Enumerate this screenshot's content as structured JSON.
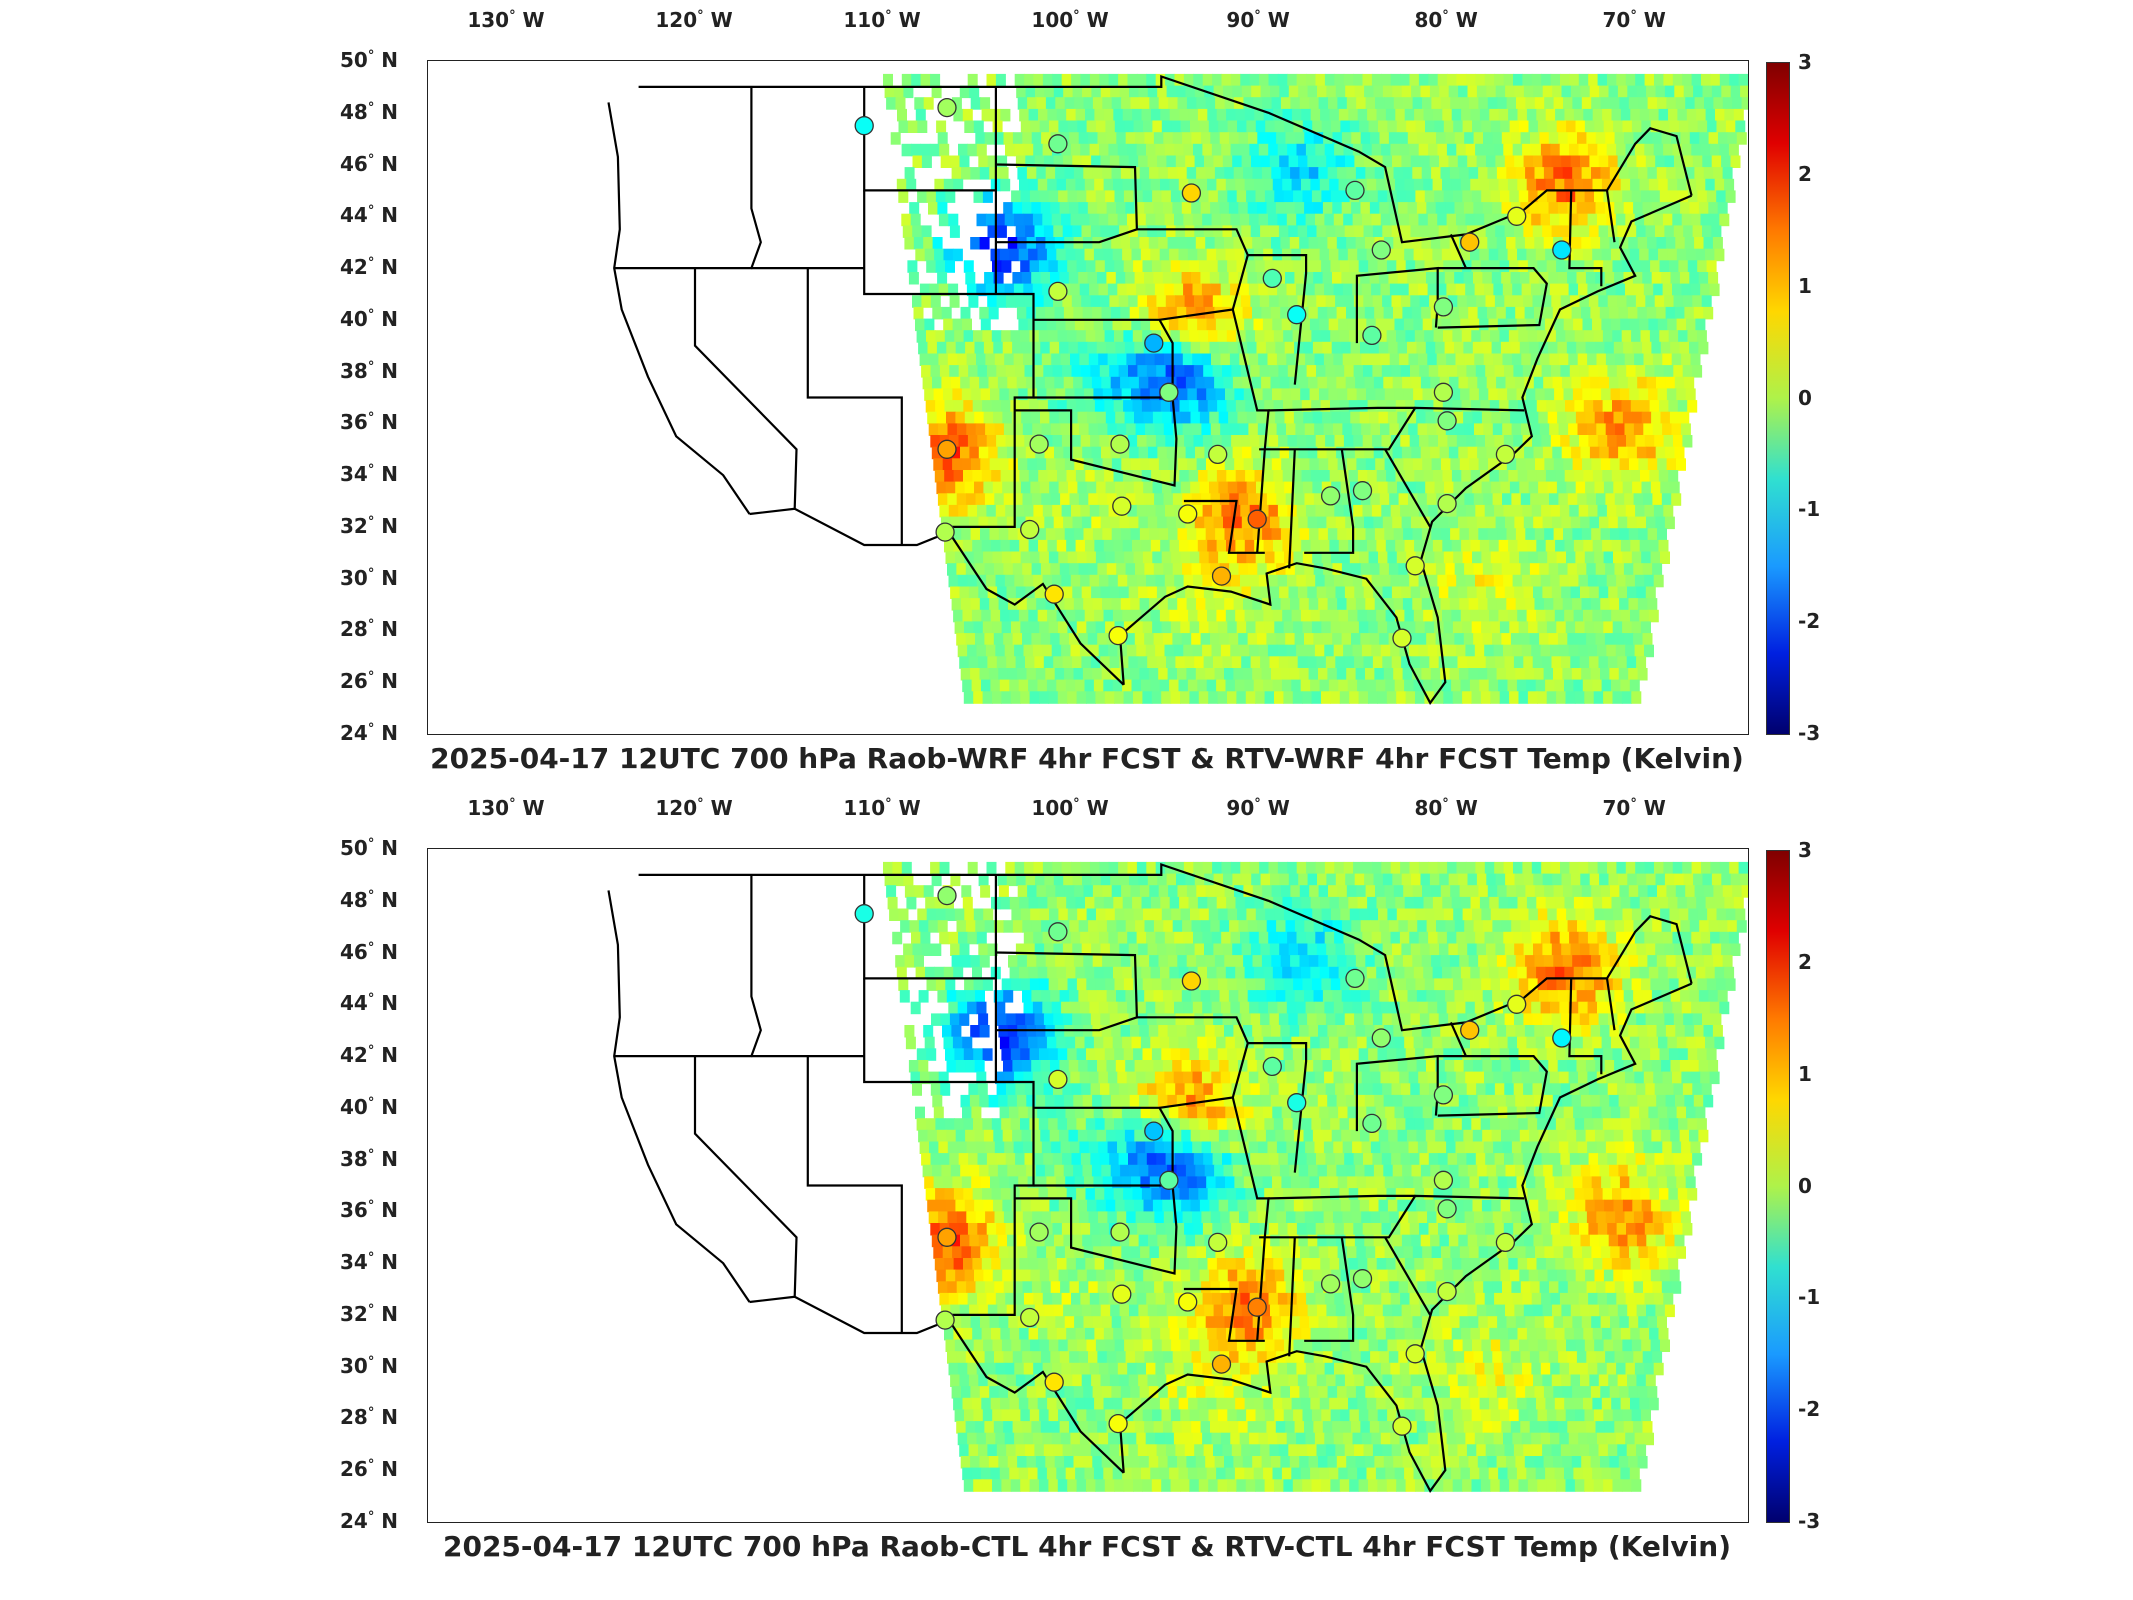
{
  "panels": [
    {
      "title": "2025-04-17 12UTC 700 hPa Raob-WRF 4hr FCST & RTV-WRF 4hr FCST Temp (Kelvin)"
    },
    {
      "title": "2025-04-17 12UTC 700 hPa Raob-CTL 4hr FCST & RTV-CTL 4hr FCST Temp (Kelvin)"
    }
  ],
  "lon_labels": [
    "130",
    "120",
    "110",
    "100",
    "90",
    "80",
    "70"
  ],
  "lon_suffix": "W",
  "lat_labels": [
    "50",
    "48",
    "46",
    "44",
    "42",
    "40",
    "38",
    "36",
    "34",
    "32",
    "30",
    "28",
    "26",
    "24"
  ],
  "lat_suffix": "N",
  "colorbar": {
    "ticks": [
      "3",
      "2",
      "1",
      "0",
      "-1",
      "-2",
      "-3"
    ],
    "range": [
      -3,
      3
    ],
    "colormap": "jet"
  },
  "stations_top": [
    {
      "lon": -111.0,
      "lat": 47.5,
      "value": -0.7
    },
    {
      "lon": -106.6,
      "lat": 48.2,
      "value": 0.2
    },
    {
      "lon": -100.7,
      "lat": 46.8,
      "value": -0.1
    },
    {
      "lon": -93.6,
      "lat": 44.9,
      "value": 1.0
    },
    {
      "lon": -84.9,
      "lat": 45.0,
      "value": -0.2
    },
    {
      "lon": -76.3,
      "lat": 44.0,
      "value": 0.6
    },
    {
      "lon": -73.9,
      "lat": 42.7,
      "value": -0.9
    },
    {
      "lon": -78.8,
      "lat": 43.0,
      "value": 1.1
    },
    {
      "lon": -83.5,
      "lat": 42.7,
      "value": 0.0
    },
    {
      "lon": -89.3,
      "lat": 41.6,
      "value": -0.3
    },
    {
      "lon": -100.7,
      "lat": 41.1,
      "value": 0.4
    },
    {
      "lon": -88.0,
      "lat": 40.2,
      "value": -0.7
    },
    {
      "lon": -95.6,
      "lat": 39.1,
      "value": -1.2
    },
    {
      "lon": -84.0,
      "lat": 39.4,
      "value": -0.2
    },
    {
      "lon": -80.2,
      "lat": 40.5,
      "value": 0.0
    },
    {
      "lon": -94.8,
      "lat": 37.2,
      "value": 0.0
    },
    {
      "lon": -80.2,
      "lat": 37.2,
      "value": 0.3
    },
    {
      "lon": -80.0,
      "lat": 36.1,
      "value": 0.0
    },
    {
      "lon": -101.7,
      "lat": 35.2,
      "value": 0.2
    },
    {
      "lon": -97.4,
      "lat": 35.2,
      "value": 0.3
    },
    {
      "lon": -106.6,
      "lat": 35.0,
      "value": 1.3
    },
    {
      "lon": -92.2,
      "lat": 34.8,
      "value": 0.4
    },
    {
      "lon": -76.9,
      "lat": 34.8,
      "value": 0.4
    },
    {
      "lon": -86.2,
      "lat": 33.2,
      "value": 0.1
    },
    {
      "lon": -84.5,
      "lat": 33.4,
      "value": 0.0
    },
    {
      "lon": -97.3,
      "lat": 32.8,
      "value": 0.5
    },
    {
      "lon": -93.8,
      "lat": 32.5,
      "value": 0.7
    },
    {
      "lon": -90.1,
      "lat": 32.3,
      "value": 1.7
    },
    {
      "lon": -80.0,
      "lat": 32.9,
      "value": 0.3
    },
    {
      "lon": -102.2,
      "lat": 31.9,
      "value": 0.4
    },
    {
      "lon": -106.7,
      "lat": 31.8,
      "value": 0.3
    },
    {
      "lon": -92.0,
      "lat": 30.1,
      "value": 1.2
    },
    {
      "lon": -81.7,
      "lat": 30.5,
      "value": 0.5
    },
    {
      "lon": -100.9,
      "lat": 29.4,
      "value": 0.9
    },
    {
      "lon": -97.5,
      "lat": 27.8,
      "value": 0.7
    },
    {
      "lon": -82.4,
      "lat": 27.7,
      "value": 0.5
    }
  ],
  "stations_bottom": [
    {
      "lon": -111.0,
      "lat": 47.5,
      "value": -0.6
    },
    {
      "lon": -106.6,
      "lat": 48.2,
      "value": 0.1
    },
    {
      "lon": -100.7,
      "lat": 46.8,
      "value": -0.1
    },
    {
      "lon": -93.6,
      "lat": 44.9,
      "value": 1.0
    },
    {
      "lon": -84.9,
      "lat": 45.0,
      "value": -0.1
    },
    {
      "lon": -76.3,
      "lat": 44.0,
      "value": 0.6
    },
    {
      "lon": -73.9,
      "lat": 42.7,
      "value": -0.8
    },
    {
      "lon": -78.8,
      "lat": 43.0,
      "value": 1.1
    },
    {
      "lon": -83.5,
      "lat": 42.7,
      "value": 0.1
    },
    {
      "lon": -89.3,
      "lat": 41.6,
      "value": -0.2
    },
    {
      "lon": -100.7,
      "lat": 41.1,
      "value": 0.5
    },
    {
      "lon": -88.0,
      "lat": 40.2,
      "value": -0.6
    },
    {
      "lon": -95.6,
      "lat": 39.1,
      "value": -1.1
    },
    {
      "lon": -84.0,
      "lat": 39.4,
      "value": -0.1
    },
    {
      "lon": -80.2,
      "lat": 40.5,
      "value": 0.0
    },
    {
      "lon": -94.8,
      "lat": 37.2,
      "value": -0.2
    },
    {
      "lon": -80.2,
      "lat": 37.2,
      "value": 0.3
    },
    {
      "lon": -80.0,
      "lat": 36.1,
      "value": 0.0
    },
    {
      "lon": -101.7,
      "lat": 35.2,
      "value": 0.2
    },
    {
      "lon": -97.4,
      "lat": 35.2,
      "value": 0.3
    },
    {
      "lon": -106.6,
      "lat": 35.0,
      "value": 1.3
    },
    {
      "lon": -92.2,
      "lat": 34.8,
      "value": 0.4
    },
    {
      "lon": -76.9,
      "lat": 34.8,
      "value": 0.4
    },
    {
      "lon": -86.2,
      "lat": 33.2,
      "value": 0.2
    },
    {
      "lon": -84.5,
      "lat": 33.4,
      "value": 0.1
    },
    {
      "lon": -97.3,
      "lat": 32.8,
      "value": 0.6
    },
    {
      "lon": -93.8,
      "lat": 32.5,
      "value": 0.7
    },
    {
      "lon": -90.1,
      "lat": 32.3,
      "value": 1.5
    },
    {
      "lon": -80.0,
      "lat": 32.9,
      "value": 0.4
    },
    {
      "lon": -102.2,
      "lat": 31.9,
      "value": 0.4
    },
    {
      "lon": -106.7,
      "lat": 31.8,
      "value": 0.3
    },
    {
      "lon": -92.0,
      "lat": 30.1,
      "value": 1.2
    },
    {
      "lon": -81.7,
      "lat": 30.5,
      "value": 0.5
    },
    {
      "lon": -100.9,
      "lat": 29.4,
      "value": 0.9
    },
    {
      "lon": -97.5,
      "lat": 27.8,
      "value": 0.7
    },
    {
      "lon": -82.4,
      "lat": 27.7,
      "value": 0.5
    }
  ],
  "field_regions": [
    {
      "lon": -91.0,
      "lat": 32.5,
      "value": 1.5
    },
    {
      "lon": -94.0,
      "lat": 40.0,
      "value": 2.0
    },
    {
      "lon": -94.5,
      "lat": 38.2,
      "value": -2.2
    },
    {
      "lon": -104.0,
      "lat": 43.0,
      "value": -2.0
    },
    {
      "lon": -107.0,
      "lat": 35.0,
      "value": 1.8
    },
    {
      "lon": -74.0,
      "lat": 45.5,
      "value": 1.6
    },
    {
      "lon": -71.0,
      "lat": 36.0,
      "value": 1.4
    },
    {
      "lon": -88.0,
      "lat": 46.0,
      "value": -0.9
    },
    {
      "lon": -98.0,
      "lat": 38.0,
      "value": -0.5
    },
    {
      "lon": -100.0,
      "lat": 33.0,
      "value": 0.3
    },
    {
      "lon": -93.0,
      "lat": 29.5,
      "value": 0.5
    },
    {
      "lon": -78.0,
      "lat": 30.0,
      "value": 0.6
    }
  ]
}
